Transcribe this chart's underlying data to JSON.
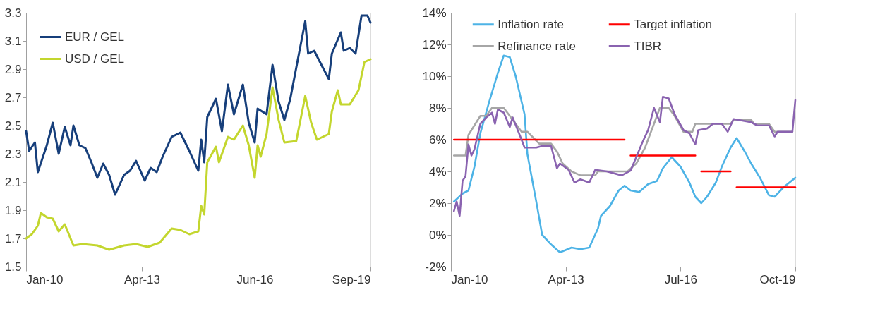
{
  "chart_data": [
    {
      "type": "line",
      "xlim": [
        "2010-01",
        "2019-09"
      ],
      "ylim": [
        1.5,
        3.3
      ],
      "grid": false,
      "legend": "top left",
      "xticks": [
        {
          "value": "2010-01",
          "label": "Jan-10"
        },
        {
          "value": "2013-04",
          "label": "Apr-13"
        },
        {
          "value": "2016-06",
          "label": "Jun-16"
        },
        {
          "value": "2019-09",
          "label": "Sep-19"
        }
      ],
      "yticks": [
        1.5,
        1.7,
        1.9,
        2.1,
        2.3,
        2.5,
        2.7,
        2.9,
        3.1,
        3.3
      ],
      "series": [
        {
          "name": "EUR / GEL",
          "color": "#173f7b",
          "x": [
            "2010-01",
            "2010-02",
            "2010-04",
            "2010-05",
            "2010-08",
            "2010-10",
            "2010-12",
            "2011-02",
            "2011-04",
            "2011-05",
            "2011-07",
            "2011-09",
            "2011-11",
            "2012-01",
            "2012-03",
            "2012-05",
            "2012-07",
            "2012-10",
            "2012-12",
            "2013-02",
            "2013-05",
            "2013-07",
            "2013-09",
            "2013-11",
            "2014-02",
            "2014-05",
            "2014-08",
            "2014-11",
            "2014-12",
            "2015-01",
            "2015-02",
            "2015-05",
            "2015-07",
            "2015-09",
            "2015-11",
            "2016-02",
            "2016-04",
            "2016-06",
            "2016-07",
            "2016-10",
            "2016-12",
            "2017-02",
            "2017-04",
            "2017-06",
            "2017-08",
            "2017-11",
            "2017-12",
            "2018-02",
            "2018-05",
            "2018-07",
            "2018-08",
            "2018-11",
            "2018-12",
            "2019-02",
            "2019-04",
            "2019-06",
            "2019-08",
            "2019-09"
          ],
          "values": [
            2.46,
            2.32,
            2.38,
            2.17,
            2.36,
            2.52,
            2.3,
            2.49,
            2.36,
            2.5,
            2.36,
            2.34,
            2.24,
            2.13,
            2.23,
            2.15,
            2.01,
            2.15,
            2.18,
            2.25,
            2.11,
            2.2,
            2.17,
            2.28,
            2.42,
            2.45,
            2.32,
            2.18,
            2.4,
            2.24,
            2.56,
            2.69,
            2.46,
            2.79,
            2.58,
            2.79,
            2.52,
            2.38,
            2.62,
            2.58,
            2.93,
            2.67,
            2.54,
            2.69,
            2.91,
            3.24,
            3.01,
            3.03,
            2.91,
            2.83,
            3.01,
            3.16,
            3.03,
            3.05,
            3.01,
            3.28,
            3.28,
            3.23
          ]
        },
        {
          "name": "USD / GEL",
          "color": "#c3d62e",
          "x": [
            "2010-01",
            "2010-03",
            "2010-05",
            "2010-06",
            "2010-08",
            "2010-10",
            "2010-12",
            "2011-02",
            "2011-05",
            "2011-08",
            "2012-01",
            "2012-05",
            "2012-10",
            "2013-02",
            "2013-06",
            "2013-10",
            "2014-02",
            "2014-05",
            "2014-08",
            "2014-11",
            "2014-12",
            "2015-01",
            "2015-02",
            "2015-05",
            "2015-06",
            "2015-09",
            "2015-11",
            "2016-02",
            "2016-04",
            "2016-06",
            "2016-07",
            "2016-08",
            "2016-10",
            "2016-12",
            "2017-02",
            "2017-04",
            "2017-08",
            "2017-11",
            "2018-01",
            "2018-03",
            "2018-07",
            "2018-08",
            "2018-10",
            "2018-11",
            "2019-02",
            "2019-05",
            "2019-07",
            "2019-09"
          ],
          "values": [
            1.7,
            1.73,
            1.79,
            1.88,
            1.85,
            1.84,
            1.75,
            1.8,
            1.65,
            1.66,
            1.65,
            1.62,
            1.65,
            1.66,
            1.64,
            1.67,
            1.77,
            1.76,
            1.73,
            1.75,
            1.93,
            1.87,
            2.24,
            2.35,
            2.24,
            2.42,
            2.4,
            2.5,
            2.36,
            2.13,
            2.36,
            2.28,
            2.44,
            2.77,
            2.54,
            2.38,
            2.39,
            2.71,
            2.52,
            2.4,
            2.44,
            2.6,
            2.75,
            2.65,
            2.65,
            2.75,
            2.95,
            2.97
          ]
        }
      ]
    },
    {
      "type": "line",
      "xlim": [
        "2010-01",
        "2019-10"
      ],
      "ylim": [
        -2,
        14
      ],
      "grid": false,
      "legend": "top",
      "xticks": [
        {
          "value": "2010-01",
          "label": "Jan-10"
        },
        {
          "value": "2013-04",
          "label": "Apr-13"
        },
        {
          "value": "2016-07",
          "label": "Jul-16"
        },
        {
          "value": "2019-10",
          "label": "Oct-19"
        }
      ],
      "yticks": [
        {
          "value": -2,
          "label": "-2%"
        },
        {
          "value": 0,
          "label": "0%"
        },
        {
          "value": 2,
          "label": "2%"
        },
        {
          "value": 4,
          "label": "4%"
        },
        {
          "value": 6,
          "label": "6%"
        },
        {
          "value": 8,
          "label": "8%"
        },
        {
          "value": 10,
          "label": "10%"
        },
        {
          "value": 12,
          "label": "12%"
        },
        {
          "value": 14,
          "label": "14%"
        }
      ],
      "series": [
        {
          "name": "Inflation rate",
          "color": "#4db3e6",
          "x": [
            "2010-02",
            "2010-05",
            "2010-07",
            "2010-09",
            "2010-11",
            "2011-02",
            "2011-05",
            "2011-07",
            "2011-09",
            "2011-11",
            "2012-02",
            "2012-03",
            "2012-06",
            "2012-08",
            "2012-11",
            "2013-02",
            "2013-06",
            "2013-09",
            "2013-12",
            "2014-03",
            "2014-04",
            "2014-07",
            "2014-10",
            "2014-12",
            "2015-02",
            "2015-05",
            "2015-08",
            "2015-11",
            "2016-01",
            "2016-04",
            "2016-07",
            "2016-10",
            "2016-12",
            "2017-02",
            "2017-04",
            "2017-07",
            "2017-09",
            "2017-12",
            "2018-02",
            "2018-05",
            "2018-07",
            "2018-10",
            "2019-01",
            "2019-03",
            "2019-06",
            "2019-10"
          ],
          "values": [
            2.1,
            2.6,
            2.8,
            4.3,
            6.4,
            8.4,
            10.2,
            11.3,
            11.2,
            10.0,
            7.6,
            5.1,
            2.1,
            0.0,
            -0.6,
            -1.1,
            -0.8,
            -0.9,
            -0.8,
            0.4,
            1.2,
            1.8,
            2.8,
            3.1,
            2.8,
            2.7,
            3.2,
            3.4,
            4.2,
            4.9,
            4.3,
            3.3,
            2.4,
            2.0,
            2.4,
            3.3,
            4.3,
            5.5,
            6.1,
            5.2,
            4.5,
            3.6,
            2.5,
            2.4,
            3.0,
            3.6
          ]
        },
        {
          "name": "Refinance rate",
          "color": "#a6a6a6",
          "x": [
            "2010-02",
            "2010-06",
            "2010-07",
            "2010-08",
            "2010-11",
            "2011-01",
            "2011-03",
            "2011-07",
            "2011-09",
            "2011-11",
            "2012-01",
            "2012-03",
            "2012-07",
            "2012-11",
            "2013-01",
            "2013-03",
            "2013-06",
            "2013-09",
            "2014-02",
            "2014-03",
            "2015-01",
            "2015-04",
            "2015-07",
            "2015-10",
            "2015-12",
            "2016-03",
            "2016-05",
            "2016-08",
            "2016-11",
            "2016-12",
            "2017-12",
            "2018-01",
            "2018-07",
            "2018-08",
            "2019-01",
            "2019-03",
            "2019-09"
          ],
          "values": [
            5.0,
            5.0,
            6.3,
            6.6,
            7.5,
            7.5,
            8.0,
            8.0,
            7.5,
            7.0,
            6.5,
            6.5,
            5.75,
            5.75,
            5.25,
            4.5,
            4.0,
            3.75,
            3.75,
            4.0,
            4.0,
            4.5,
            5.5,
            7.0,
            8.0,
            8.0,
            7.5,
            6.5,
            6.5,
            7.0,
            7.0,
            7.25,
            7.25,
            7.0,
            7.0,
            6.5,
            6.5
          ]
        },
        {
          "name": "Target inflation",
          "color": "#ff0000",
          "x": [
            "2010-02",
            "2014-12",
            "2015-01",
            "2015-02",
            "2016-12",
            "2017-01",
            "2017-02",
            "2017-12",
            "2018-01",
            "2018-02",
            "2019-10"
          ],
          "values": [
            6,
            6,
            null,
            5,
            5,
            null,
            4,
            4,
            null,
            3,
            3
          ]
        },
        {
          "name": "TIBR",
          "color": "#8a63b0",
          "x": [
            "2010-02",
            "2010-03",
            "2010-04",
            "2010-05",
            "2010-06",
            "2010-07",
            "2010-08",
            "2010-09",
            "2010-11",
            "2011-01",
            "2011-03",
            "2011-04",
            "2011-05",
            "2011-07",
            "2011-09",
            "2011-10",
            "2012-01",
            "2012-02",
            "2012-06",
            "2012-08",
            "2012-11",
            "2013-01",
            "2013-02",
            "2013-05",
            "2013-07",
            "2013-09",
            "2013-12",
            "2014-02",
            "2014-06",
            "2014-11",
            "2015-02",
            "2015-04",
            "2015-06",
            "2015-08",
            "2015-10",
            "2015-12",
            "2016-01",
            "2016-03",
            "2016-05",
            "2016-08",
            "2016-10",
            "2016-12",
            "2017-01",
            "2017-04",
            "2017-06",
            "2017-09",
            "2017-11",
            "2018-01",
            "2018-07",
            "2018-09",
            "2019-01",
            "2019-03",
            "2019-04",
            "2019-09",
            "2019-10"
          ],
          "values": [
            1.5,
            2.1,
            1.2,
            3.4,
            3.7,
            5.7,
            5.0,
            5.4,
            7.0,
            7.4,
            7.7,
            7.0,
            7.9,
            7.7,
            6.8,
            7.4,
            6.0,
            5.5,
            5.5,
            5.6,
            5.6,
            4.2,
            4.5,
            4.1,
            3.3,
            3.5,
            3.3,
            4.1,
            4.0,
            3.75,
            4.05,
            4.9,
            5.8,
            6.6,
            8.0,
            7.1,
            8.7,
            8.6,
            7.6,
            6.6,
            6.4,
            5.7,
            6.6,
            6.7,
            7.0,
            7.0,
            6.5,
            7.3,
            7.1,
            6.9,
            6.9,
            6.2,
            6.5,
            6.5,
            8.5
          ]
        }
      ]
    }
  ]
}
